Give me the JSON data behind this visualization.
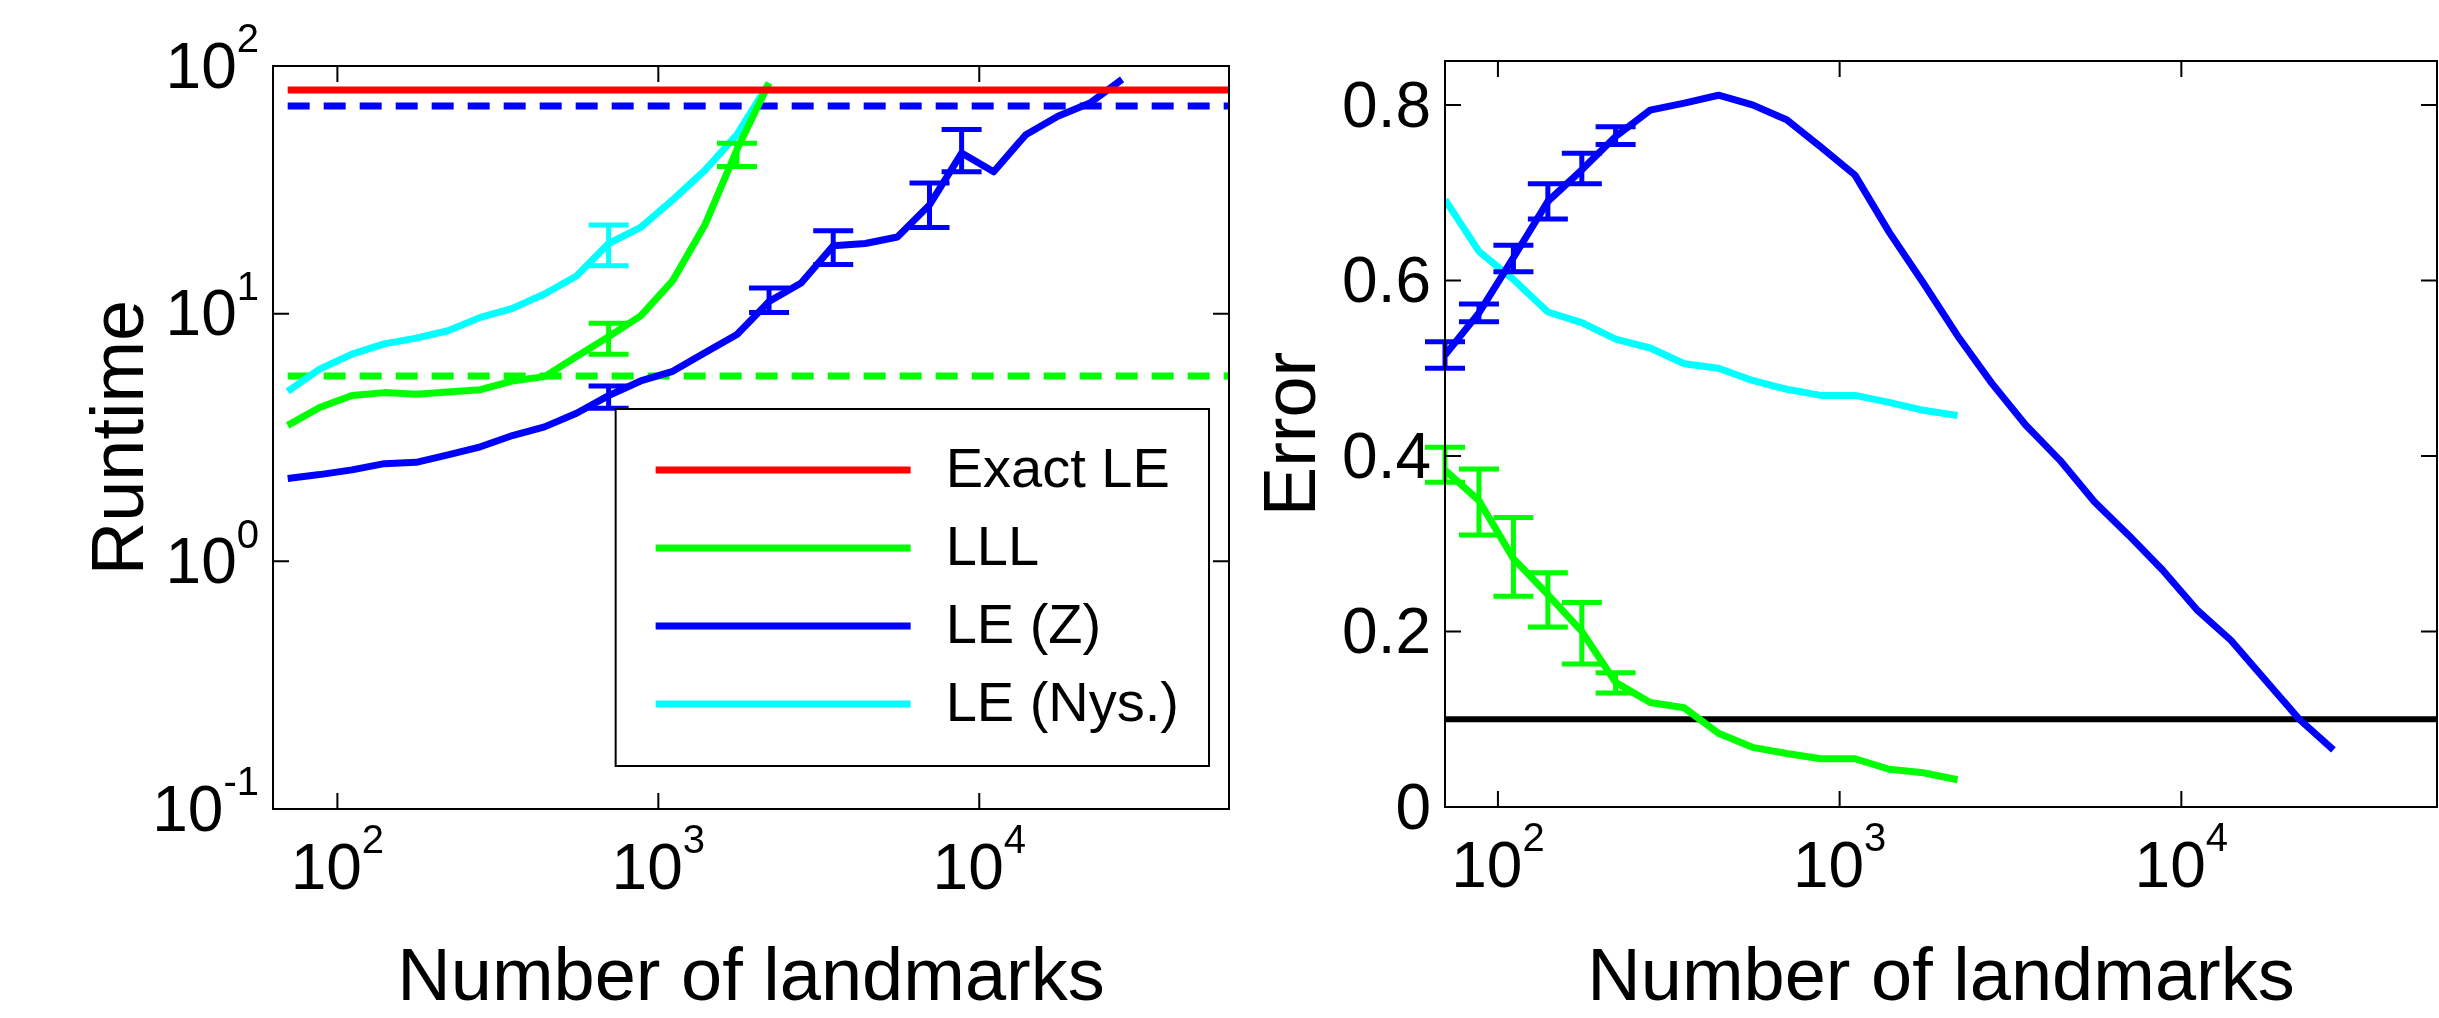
{
  "chart_data": [
    {
      "type": "line",
      "log": "xy",
      "xlabel": "Number of landmarks",
      "ylabel": "Runtime",
      "legend": "bottom right",
      "marker": "none",
      "xlim": [
        63,
        60000
      ],
      "ylim": [
        0.1,
        100
      ],
      "xticks": [
        {
          "value": 100,
          "label": "10$^{2}$"
        },
        {
          "value": 1000,
          "label": "10$^{3}$"
        },
        {
          "value": 10000,
          "label": "10$^{4}$"
        }
      ],
      "yticks": [
        {
          "value": 0.1,
          "label": "10$^{-1}$"
        },
        {
          "value": 1,
          "label": "10$^{0}$"
        },
        {
          "value": 10,
          "label": "10$^{1}$"
        },
        {
          "value": 100,
          "label": "10$^{2}$"
        }
      ],
      "series": [
        {
          "name": "Exact LE",
          "color": "#ff0000",
          "x": [
            70,
            60000
          ],
          "values": [
            80,
            80
          ]
        },
        {
          "name": "LLL",
          "color": "#00ff00",
          "x": [
            70,
            88,
            111,
            140,
            176,
            221,
            279,
            351,
            442,
            556,
            700,
            881,
            1109,
            1396,
            1758,
            2213
          ],
          "values": [
            3.54,
            4.18,
            4.67,
            4.8,
            4.73,
            4.83,
            4.93,
            5.35,
            5.57,
            6.71,
            8.08,
            9.8,
            13.6,
            22.8,
            46,
            85.4
          ],
          "errors": [
            null,
            null,
            null,
            null,
            null,
            null,
            null,
            null,
            null,
            null,
            [
              6.86,
              9.14
            ],
            null,
            null,
            null,
            [
              39.3,
              48.8
            ],
            null
          ]
        },
        {
          "name": "LE (Z)",
          "color": "#0000ff",
          "x": [
            70,
            88,
            111,
            140,
            176,
            221,
            279,
            351,
            442,
            556,
            700,
            881,
            1109,
            1396,
            1758,
            2213,
            2786,
            3507,
            4415,
            5558,
            6998,
            8810,
            11091,
            13963,
            17578,
            22130,
            27860
          ],
          "values": [
            2.16,
            2.24,
            2.34,
            2.48,
            2.51,
            2.69,
            2.9,
            3.22,
            3.49,
            3.96,
            4.67,
            5.35,
            5.85,
            6.95,
            8.24,
            11.2,
            13.3,
            18.8,
            19.2,
            20.4,
            27.5,
            44.5,
            37.4,
            52.8,
            62.7,
            70.9,
            88.3
          ],
          "errors": [
            null,
            null,
            null,
            null,
            null,
            null,
            null,
            null,
            null,
            null,
            [
              4.15,
              5.1
            ],
            null,
            null,
            null,
            null,
            [
              10.1,
              12.7
            ],
            null,
            [
              15.8,
              21.6
            ],
            null,
            null,
            [
              22.3,
              33.7
            ],
            [
              37.4,
              55.4
            ],
            null,
            null,
            null,
            null,
            null
          ]
        },
        {
          "name": "LE (Nys.)",
          "color": "#00ffff",
          "x": [
            70,
            88,
            111,
            140,
            176,
            221,
            279,
            351,
            442,
            556,
            700,
            881,
            1109,
            1396,
            1758,
            2213
          ],
          "values": [
            4.86,
            5.97,
            6.86,
            7.55,
            7.97,
            8.53,
            9.66,
            10.5,
            12,
            14.2,
            19.2,
            22.3,
            28.8,
            37.9,
            52.8,
            85.4
          ],
          "errors": [
            null,
            null,
            null,
            null,
            null,
            null,
            null,
            null,
            null,
            null,
            [
              15.6,
              22.8
            ],
            null,
            null,
            null,
            null,
            null
          ]
        },
        {
          "color": "#00ff00",
          "line_style": "dashed",
          "x": [
            70,
            60000
          ],
          "values": [
            5.6,
            5.6
          ]
        },
        {
          "color": "#0000ff",
          "line_style": "dashed",
          "x": [
            70,
            60000
          ],
          "values": [
            69,
            69
          ]
        }
      ]
    },
    {
      "type": "line",
      "log": "x",
      "xlabel": "Number of landmarks",
      "ylabel": "Error",
      "marker": "none",
      "xlim": [
        70,
        56000
      ],
      "ylim": [
        0,
        0.85
      ],
      "xticks": [
        {
          "value": 100,
          "label": "10$^{2}$"
        },
        {
          "value": 1000,
          "label": "10$^{3}$"
        },
        {
          "value": 10000,
          "label": "10$^{4}$"
        }
      ],
      "yticks": [
        0,
        0.2,
        0.4,
        0.6,
        0.8
      ],
      "ref_lines": [
        {
          "axis": "y",
          "value": 0.1,
          "color": "#000000"
        }
      ],
      "series": [
        {
          "color": "#00ff00",
          "x": [
            70,
            88,
            111,
            140,
            176,
            221,
            279,
            351,
            442,
            556,
            700,
            881,
            1109,
            1396,
            1758,
            2213
          ],
          "values": [
            0.384,
            0.349,
            0.283,
            0.242,
            0.2,
            0.142,
            0.119,
            0.113,
            0.084,
            0.068,
            0.061,
            0.055,
            0.055,
            0.043,
            0.039,
            0.031
          ],
          "errors": [
            [
              0.37,
              0.41
            ],
            [
              0.31,
              0.385
            ],
            [
              0.24,
              0.33
            ],
            [
              0.205,
              0.267
            ],
            [
              0.163,
              0.233
            ],
            [
              0.13,
              0.153
            ],
            null,
            null,
            null,
            null,
            null,
            null,
            null,
            null,
            null,
            null
          ]
        },
        {
          "color": "#0000ff",
          "x": [
            70,
            88,
            111,
            140,
            176,
            221,
            279,
            351,
            442,
            556,
            700,
            881,
            1109,
            1396,
            1758,
            2213,
            2786,
            3507,
            4415,
            5558,
            6998,
            8810,
            11091,
            13963,
            17578,
            22130,
            27860
          ],
          "values": [
            0.515,
            0.563,
            0.626,
            0.69,
            0.726,
            0.764,
            0.794,
            0.802,
            0.811,
            0.8,
            0.783,
            0.752,
            0.72,
            0.655,
            0.597,
            0.537,
            0.483,
            0.435,
            0.395,
            0.348,
            0.31,
            0.27,
            0.225,
            0.19,
            0.145,
            0.1,
            0.065
          ],
          "errors": [
            [
              0.5,
              0.53
            ],
            [
              0.553,
              0.573
            ],
            [
              0.61,
              0.64
            ],
            [
              0.67,
              0.71
            ],
            [
              0.71,
              0.745
            ],
            [
              0.755,
              0.775
            ],
            null,
            null,
            null,
            null,
            null,
            null,
            null,
            null,
            null,
            null,
            null,
            null,
            null,
            null,
            null,
            null,
            null,
            null,
            null,
            null,
            null
          ]
        },
        {
          "color": "#00ffff",
          "x": [
            70,
            88,
            111,
            140,
            176,
            221,
            279,
            351,
            442,
            556,
            700,
            881,
            1109,
            1396,
            1758,
            2213
          ],
          "values": [
            0.692,
            0.633,
            0.601,
            0.564,
            0.552,
            0.533,
            0.523,
            0.505,
            0.5,
            0.486,
            0.476,
            0.469,
            0.469,
            0.461,
            0.452,
            0.446
          ]
        }
      ]
    }
  ]
}
